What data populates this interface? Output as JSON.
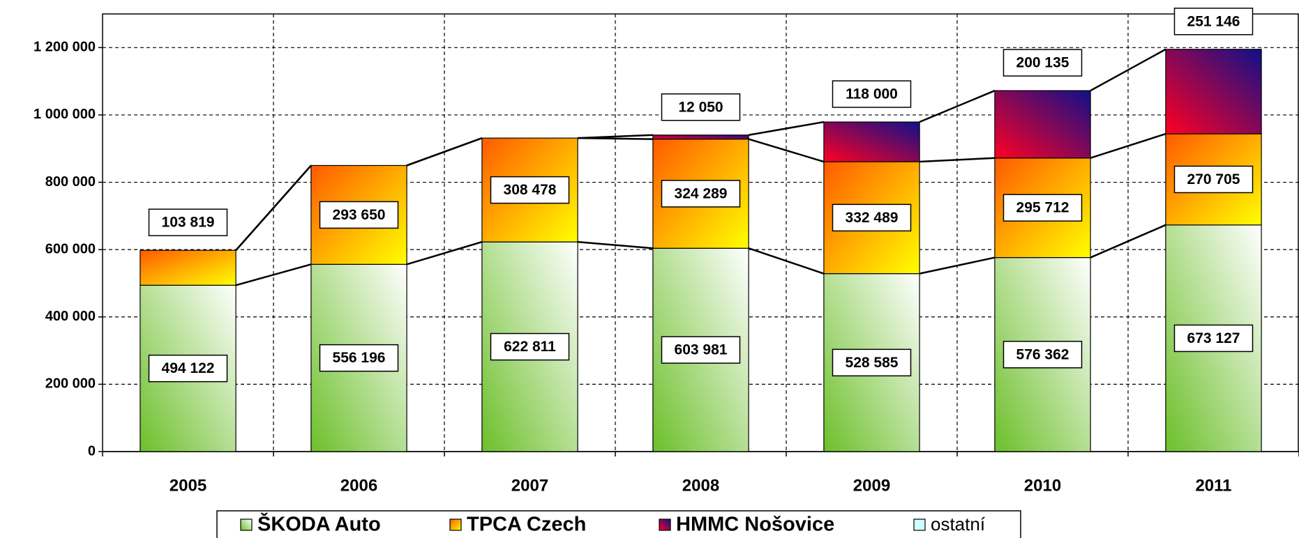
{
  "chart_data": {
    "type": "stacked_bar",
    "categories": [
      "2005",
      "2006",
      "2007",
      "2008",
      "2009",
      "2010",
      "2011"
    ],
    "series": [
      {
        "name": "ŠKODA Auto",
        "color": "#7cc242",
        "colors": [
          "#6cbf2a",
          "#ffffff"
        ],
        "values": [
          494122,
          556196,
          622811,
          603981,
          528585,
          576362,
          673127
        ],
        "value_labels": [
          "494 122",
          "556 196",
          "622 811",
          "603 981",
          "528 585",
          "576 362",
          "673 127"
        ]
      },
      {
        "name": "TPCA Czech",
        "color": "#ff9900",
        "colors": [
          "#ff5a00",
          "#ffff00"
        ],
        "values": [
          103819,
          293650,
          308478,
          324289,
          332489,
          295712,
          270705
        ],
        "value_labels": [
          "103 819",
          "293 650",
          "308 478",
          "324 289",
          "332 489",
          "295 712",
          "270 705"
        ]
      },
      {
        "name": "HMMC Nošovice",
        "color": "#800080",
        "colors": [
          "#ff0022",
          "#10108a"
        ],
        "values": [
          null,
          null,
          null,
          12050,
          118000,
          200135,
          251146
        ],
        "value_labels": [
          null,
          null,
          null,
          "12 050",
          "118 000",
          "200 135",
          "251 146"
        ]
      },
      {
        "name": "ostatní",
        "color": "#ccffff",
        "colors": [
          "#ccffff",
          "#ccffff"
        ],
        "values": [
          null,
          null,
          null,
          null,
          null,
          null,
          null
        ]
      }
    ],
    "ylim": [
      0,
      1300000
    ],
    "yticks": [
      0,
      {
        "value": 200000,
        "label": "200 000"
      },
      {
        "value": 400000,
        "label": "400 000"
      },
      {
        "value": 600000,
        "label": "600 000"
      },
      {
        "value": 800000,
        "label": "800 000"
      },
      {
        "value": 1000000,
        "label": "1 000 000"
      },
      {
        "value": 1200000,
        "label": "1 200 000"
      }
    ],
    "grid": true,
    "legend": "bottom"
  }
}
